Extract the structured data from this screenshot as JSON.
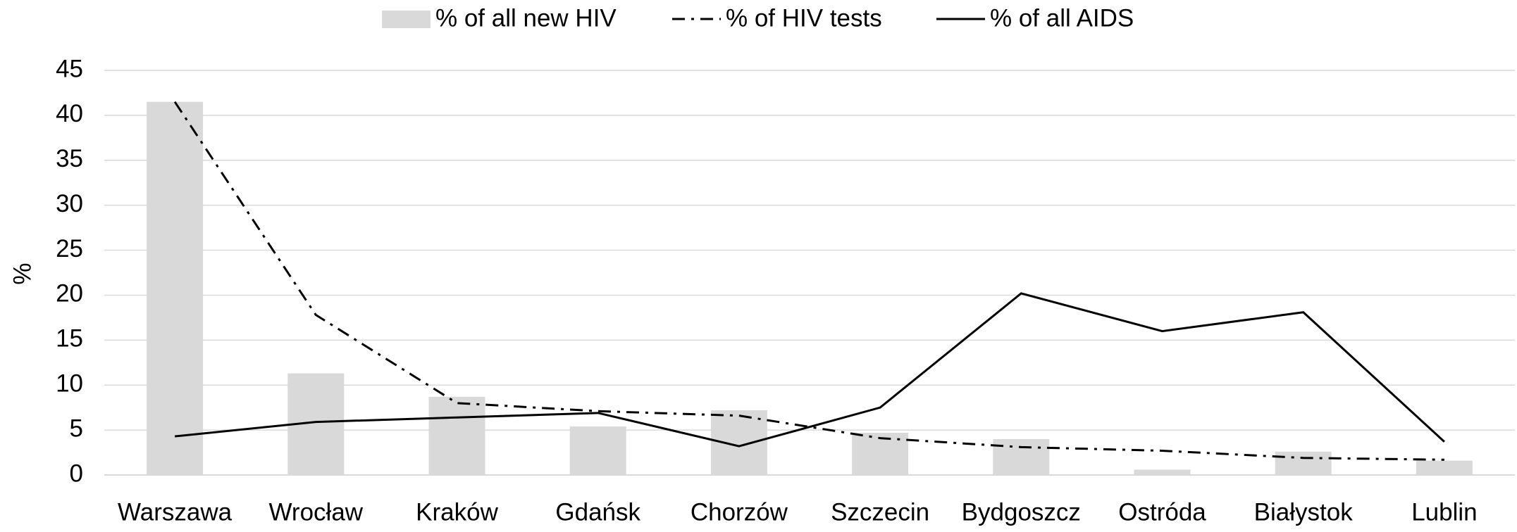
{
  "chart_data": {
    "type": "bar",
    "y_label": "%",
    "categories": [
      "Warszawa",
      "Wrocław",
      "Kraków",
      "Gdańsk",
      "Chorzów",
      "Szczecin",
      "Bydgoszcz",
      "Ostróda",
      "Białystok",
      "Lublin"
    ],
    "series": [
      {
        "name": "% of all new HIV",
        "type": "bar",
        "color": "#d9d9d9",
        "values": [
          41.5,
          11.3,
          8.7,
          5.4,
          7.2,
          4.7,
          4.0,
          0.6,
          2.6,
          1.6
        ]
      },
      {
        "name": "% of HIV tests",
        "type": "line",
        "dash": "dashdot",
        "color": "#000000",
        "values": [
          41.5,
          17.8,
          8.0,
          7.1,
          6.6,
          4.1,
          3.1,
          2.7,
          1.9,
          1.7
        ]
      },
      {
        "name": "% of all AIDS",
        "type": "line",
        "dash": "solid",
        "color": "#000000",
        "values": [
          4.3,
          5.9,
          6.4,
          6.9,
          3.2,
          7.5,
          20.2,
          16.0,
          18.1,
          3.7
        ]
      }
    ],
    "ylim": [
      0,
      45
    ],
    "yticks": [
      0,
      5,
      10,
      15,
      20,
      25,
      30,
      35,
      40,
      45
    ],
    "grid": true,
    "legend": "top"
  }
}
